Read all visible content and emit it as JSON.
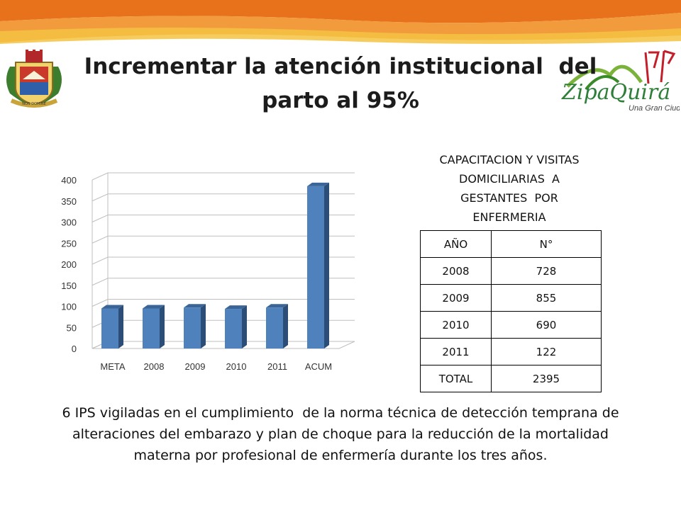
{
  "title": {
    "line1": "Incrementar la atención institucional  del",
    "line2": "parto al 95%"
  },
  "logo": {
    "brand": "ZipaQuirá",
    "tagline": "Una Gran Ciudad"
  },
  "crest": {
    "motto": "NON DOMINE"
  },
  "chart_data": {
    "type": "bar",
    "categories": [
      "META",
      "2008",
      "2009",
      "2010",
      "2011",
      "ACUM"
    ],
    "values": [
      95,
      95,
      97,
      94,
      97,
      385
    ],
    "ylim": [
      0,
      400
    ],
    "yticks": [
      0,
      50,
      100,
      150,
      200,
      250,
      300,
      350,
      400
    ],
    "grid": true,
    "title": "",
    "xlabel": "",
    "ylabel": "",
    "colors": {
      "bar_front": "#4f81bd",
      "bar_side": "#2c4d75",
      "bar_top": "#3a6596",
      "grid": "#bfbfbf"
    }
  },
  "table": {
    "title_lines": [
      "CAPACITACION Y VISITAS",
      "DOMICILIARIAS  A",
      "GESTANTES  POR",
      "ENFERMERIA"
    ],
    "headers": [
      "AÑO",
      "N°"
    ],
    "rows": [
      [
        "2008",
        "728"
      ],
      [
        "2009",
        "855"
      ],
      [
        "2010",
        "690"
      ],
      [
        "2011",
        "122"
      ],
      [
        "TOTAL",
        "2395"
      ]
    ]
  },
  "footer": {
    "line1": "6 IPS vigiladas en el cumplimiento  de la norma técnica de detección temprana de",
    "line2": "alteraciones del embarazo y plan de choque para la reducción de la mortalidad",
    "line3": "materna por profesional de enfermería durante los tres años."
  },
  "colors": {
    "band_orange": "#e8711b",
    "band_light": "#f29b3c",
    "band_yellow": "#f5c342"
  }
}
